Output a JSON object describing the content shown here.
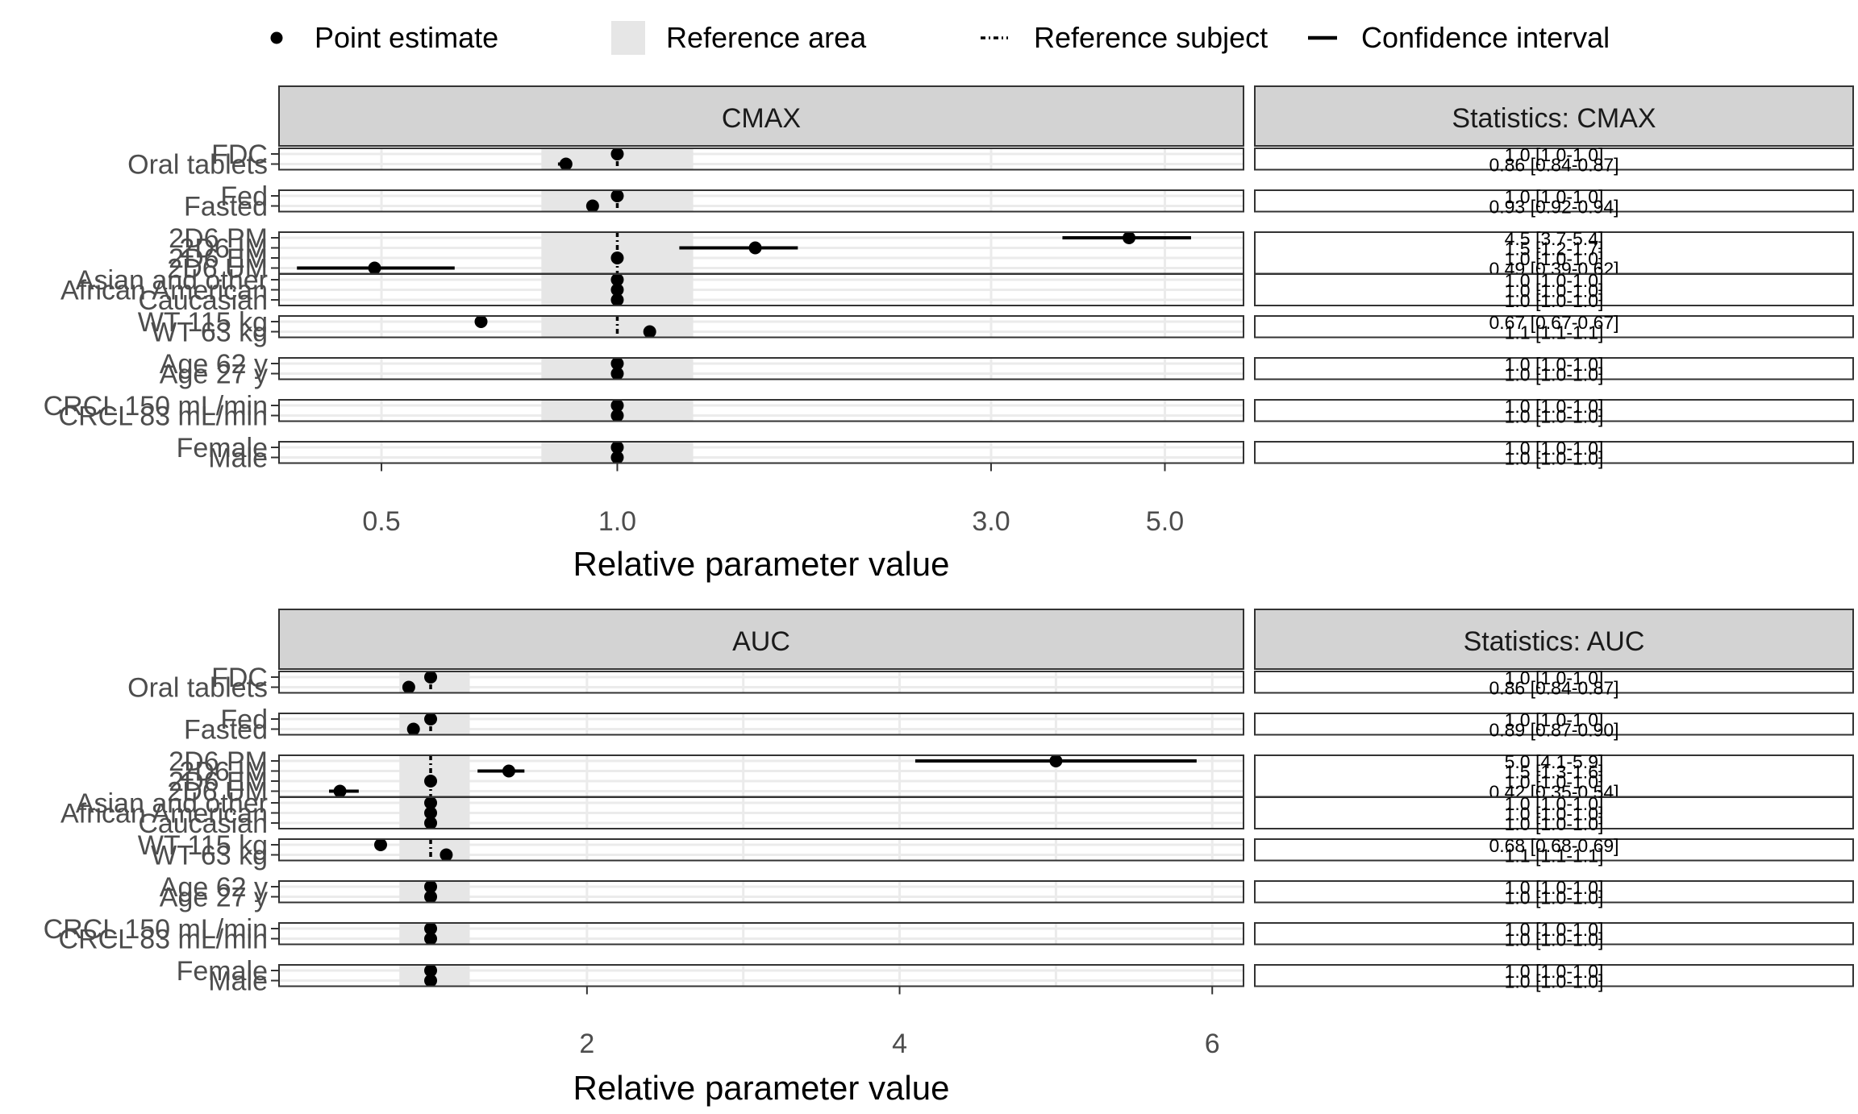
{
  "legend": {
    "point_label": "Point estimate",
    "area_label": "Reference area",
    "subject_label": "Reference subject",
    "ci_label": "Confidence interval",
    "placement": "top"
  },
  "colors": {
    "strip_bg": "#d3d3d3",
    "ref_area": "#e6e6e6",
    "grid": "#ebebeb",
    "ink": "#000000",
    "border": "#333333",
    "tick_label": "#4d4d4d"
  },
  "chart_data": [
    {
      "type": "scatter",
      "title": "CMAX",
      "stats_title": "Statistics: CMAX",
      "xlabel": "Relative parameter value",
      "xscale": "log",
      "xlim": [
        0.37,
        6.3
      ],
      "xticks": [
        0.5,
        1.0,
        3.0,
        5.0
      ],
      "xtick_labels": [
        "0.5",
        "1.0",
        "3.0",
        "5.0"
      ],
      "reference_area": [
        0.8,
        1.25
      ],
      "reference_subject": 1.0,
      "grid": true,
      "groups": [
        {
          "rows": [
            {
              "label": "FDC",
              "est": 1.0,
              "lo": 1.0,
              "hi": 1.0,
              "stat": "1.0 [1.0-1.0]"
            },
            {
              "label": "Oral tablets",
              "est": 0.86,
              "lo": 0.84,
              "hi": 0.87,
              "stat": "0.86 [0.84-0.87]"
            }
          ]
        },
        {
          "rows": [
            {
              "label": "Fed",
              "est": 1.0,
              "lo": 1.0,
              "hi": 1.0,
              "stat": "1.0 [1.0-1.0]"
            },
            {
              "label": "Fasted",
              "est": 0.93,
              "lo": 0.92,
              "hi": 0.94,
              "stat": "0.93 [0.92-0.94]"
            }
          ]
        },
        {
          "rows": [
            {
              "label": "2D6 PM",
              "est": 4.5,
              "lo": 3.7,
              "hi": 5.4,
              "stat": "4.5 [3.7-5.4]"
            },
            {
              "label": "2D6 IM",
              "est": 1.5,
              "lo": 1.2,
              "hi": 1.7,
              "stat": "1.5 [1.2-1.7]"
            },
            {
              "label": "2D6 EM",
              "est": 1.0,
              "lo": 1.0,
              "hi": 1.0,
              "stat": "1.0 [1.0-1.0]"
            },
            {
              "label": "2D6 UM",
              "est": 0.49,
              "lo": 0.39,
              "hi": 0.62,
              "stat": "0.49 [0.39-0.62]"
            }
          ]
        },
        {
          "rows": [
            {
              "label": "Asian and other",
              "est": 1.0,
              "lo": 1.0,
              "hi": 1.0,
              "stat": "1.0 [1.0-1.0]"
            },
            {
              "label": "African American",
              "est": 1.0,
              "lo": 1.0,
              "hi": 1.0,
              "stat": "1.0 [1.0-1.0]"
            },
            {
              "label": "Caucasian",
              "est": 1.0,
              "lo": 1.0,
              "hi": 1.0,
              "stat": "1.0 [1.0-1.0]"
            }
          ]
        },
        {
          "rows": [
            {
              "label": "WT 115 kg",
              "est": 0.67,
              "lo": 0.67,
              "hi": 0.67,
              "stat": "0.67 [0.67-0.67]"
            },
            {
              "label": "WT 63 kg",
              "est": 1.1,
              "lo": 1.1,
              "hi": 1.1,
              "stat": "1.1 [1.1-1.1]"
            }
          ]
        },
        {
          "rows": [
            {
              "label": "Age 62 y",
              "est": 1.0,
              "lo": 1.0,
              "hi": 1.0,
              "stat": "1.0 [1.0-1.0]"
            },
            {
              "label": "Age 27 y",
              "est": 1.0,
              "lo": 1.0,
              "hi": 1.0,
              "stat": "1.0 [1.0-1.0]"
            }
          ]
        },
        {
          "rows": [
            {
              "label": "CRCL 150 mL/min",
              "est": 1.0,
              "lo": 1.0,
              "hi": 1.0,
              "stat": "1.0 [1.0-1.0]"
            },
            {
              "label": "CRCL 83 mL/min",
              "est": 1.0,
              "lo": 1.0,
              "hi": 1.0,
              "stat": "1.0 [1.0-1.0]"
            }
          ]
        },
        {
          "rows": [
            {
              "label": "Female",
              "est": 1.0,
              "lo": 1.0,
              "hi": 1.0,
              "stat": "1.0 [1.0-1.0]"
            },
            {
              "label": "Male",
              "est": 1.0,
              "lo": 1.0,
              "hi": 1.0,
              "stat": "1.0 [1.0-1.0]"
            }
          ]
        }
      ]
    },
    {
      "type": "scatter",
      "title": "AUC",
      "stats_title": "Statistics: AUC",
      "xlabel": "Relative parameter value",
      "xscale": "linear",
      "xlim": [
        0.03,
        6.2
      ],
      "xticks": [
        2,
        4,
        6
      ],
      "xtick_labels": [
        "2",
        "4",
        "6"
      ],
      "reference_area": [
        0.8,
        1.25
      ],
      "reference_subject": 1.0,
      "grid": true,
      "groups": [
        {
          "rows": [
            {
              "label": "FDC",
              "est": 1.0,
              "lo": 1.0,
              "hi": 1.0,
              "stat": "1.0 [1.0-1.0]"
            },
            {
              "label": "Oral tablets",
              "est": 0.86,
              "lo": 0.84,
              "hi": 0.87,
              "stat": "0.86 [0.84-0.87]"
            }
          ]
        },
        {
          "rows": [
            {
              "label": "Fed",
              "est": 1.0,
              "lo": 1.0,
              "hi": 1.0,
              "stat": "1.0 [1.0-1.0]"
            },
            {
              "label": "Fasted",
              "est": 0.89,
              "lo": 0.87,
              "hi": 0.9,
              "stat": "0.89 [0.87-0.90]"
            }
          ]
        },
        {
          "rows": [
            {
              "label": "2D6 PM",
              "est": 5.0,
              "lo": 4.1,
              "hi": 5.9,
              "stat": "5.0 [4.1-5.9]"
            },
            {
              "label": "2D6 IM",
              "est": 1.5,
              "lo": 1.3,
              "hi": 1.6,
              "stat": "1.5 [1.3-1.6]"
            },
            {
              "label": "2D6 EM",
              "est": 1.0,
              "lo": 1.0,
              "hi": 1.0,
              "stat": "1.0 [1.0-1.0]"
            },
            {
              "label": "2D6 UM",
              "est": 0.42,
              "lo": 0.35,
              "hi": 0.54,
              "stat": "0.42 [0.35-0.54]"
            }
          ]
        },
        {
          "rows": [
            {
              "label": "Asian and other",
              "est": 1.0,
              "lo": 1.0,
              "hi": 1.0,
              "stat": "1.0 [1.0-1.0]"
            },
            {
              "label": "African American",
              "est": 1.0,
              "lo": 1.0,
              "hi": 1.0,
              "stat": "1.0 [1.0-1.0]"
            },
            {
              "label": "Caucasian",
              "est": 1.0,
              "lo": 1.0,
              "hi": 1.0,
              "stat": "1.0 [1.0-1.0]"
            }
          ]
        },
        {
          "rows": [
            {
              "label": "WT 115 kg",
              "est": 0.68,
              "lo": 0.68,
              "hi": 0.69,
              "stat": "0.68 [0.68-0.69]"
            },
            {
              "label": "WT 63 kg",
              "est": 1.1,
              "lo": 1.1,
              "hi": 1.1,
              "stat": "1.1 [1.1-1.1]"
            }
          ]
        },
        {
          "rows": [
            {
              "label": "Age 62 y",
              "est": 1.0,
              "lo": 1.0,
              "hi": 1.0,
              "stat": "1.0 [1.0-1.0]"
            },
            {
              "label": "Age 27 y",
              "est": 1.0,
              "lo": 1.0,
              "hi": 1.0,
              "stat": "1.0 [1.0-1.0]"
            }
          ]
        },
        {
          "rows": [
            {
              "label": "CRCL 150 mL/min",
              "est": 1.0,
              "lo": 1.0,
              "hi": 1.0,
              "stat": "1.0 [1.0-1.0]"
            },
            {
              "label": "CRCL 83 mL/min",
              "est": 1.0,
              "lo": 1.0,
              "hi": 1.0,
              "stat": "1.0 [1.0-1.0]"
            }
          ]
        },
        {
          "rows": [
            {
              "label": "Female",
              "est": 1.0,
              "lo": 1.0,
              "hi": 1.0,
              "stat": "1.0 [1.0-1.0]"
            },
            {
              "label": "Male",
              "est": 1.0,
              "lo": 1.0,
              "hi": 1.0,
              "stat": "1.0 [1.0-1.0]"
            }
          ]
        }
      ]
    }
  ]
}
